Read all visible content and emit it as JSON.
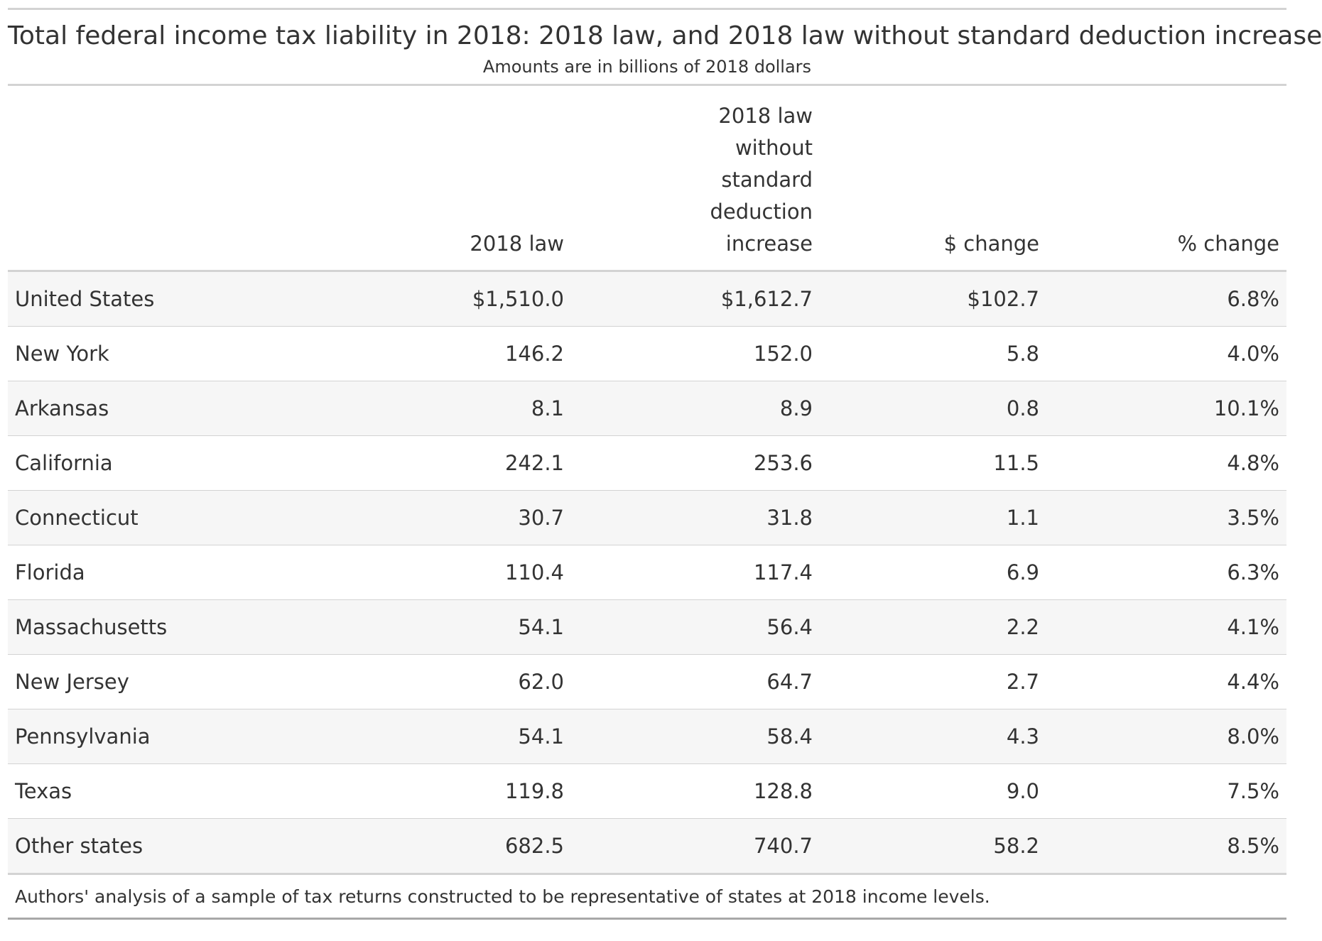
{
  "title": "Total federal income tax liability in 2018: 2018 law, and 2018 law without standard deduction increase",
  "subtitle": "Amounts are in billions of 2018 dollars",
  "columns": [
    "",
    "2018 law",
    "2018 law without standard deduction increase",
    "$ change",
    "% change"
  ],
  "header_lines": {
    "col2": [
      "2018 law",
      "without",
      "standard",
      "deduction",
      "increase"
    ]
  },
  "rows": [
    [
      "United States",
      "$1,510.0",
      "$1,612.7",
      "$102.7",
      "6.8%"
    ],
    [
      "New York",
      "146.2",
      "152.0",
      "5.8",
      "4.0%"
    ],
    [
      "Arkansas",
      "8.1",
      "8.9",
      "0.8",
      "10.1%"
    ],
    [
      "California",
      "242.1",
      "253.6",
      "11.5",
      "4.8%"
    ],
    [
      "Connecticut",
      "30.7",
      "31.8",
      "1.1",
      "3.5%"
    ],
    [
      "Florida",
      "110.4",
      "117.4",
      "6.9",
      "6.3%"
    ],
    [
      "Massachusetts",
      "54.1",
      "56.4",
      "2.2",
      "4.1%"
    ],
    [
      "New Jersey",
      "62.0",
      "64.7",
      "2.7",
      "4.4%"
    ],
    [
      "Pennsylvania",
      "54.1",
      "58.4",
      "4.3",
      "8.0%"
    ],
    [
      "Texas",
      "119.8",
      "128.8",
      "9.0",
      "7.5%"
    ],
    [
      "Other states",
      "682.5",
      "740.7",
      "58.2",
      "8.5%"
    ]
  ],
  "source_note": "Authors' analysis of a sample of tax returns constructed to be representative of states at 2018 income levels."
}
